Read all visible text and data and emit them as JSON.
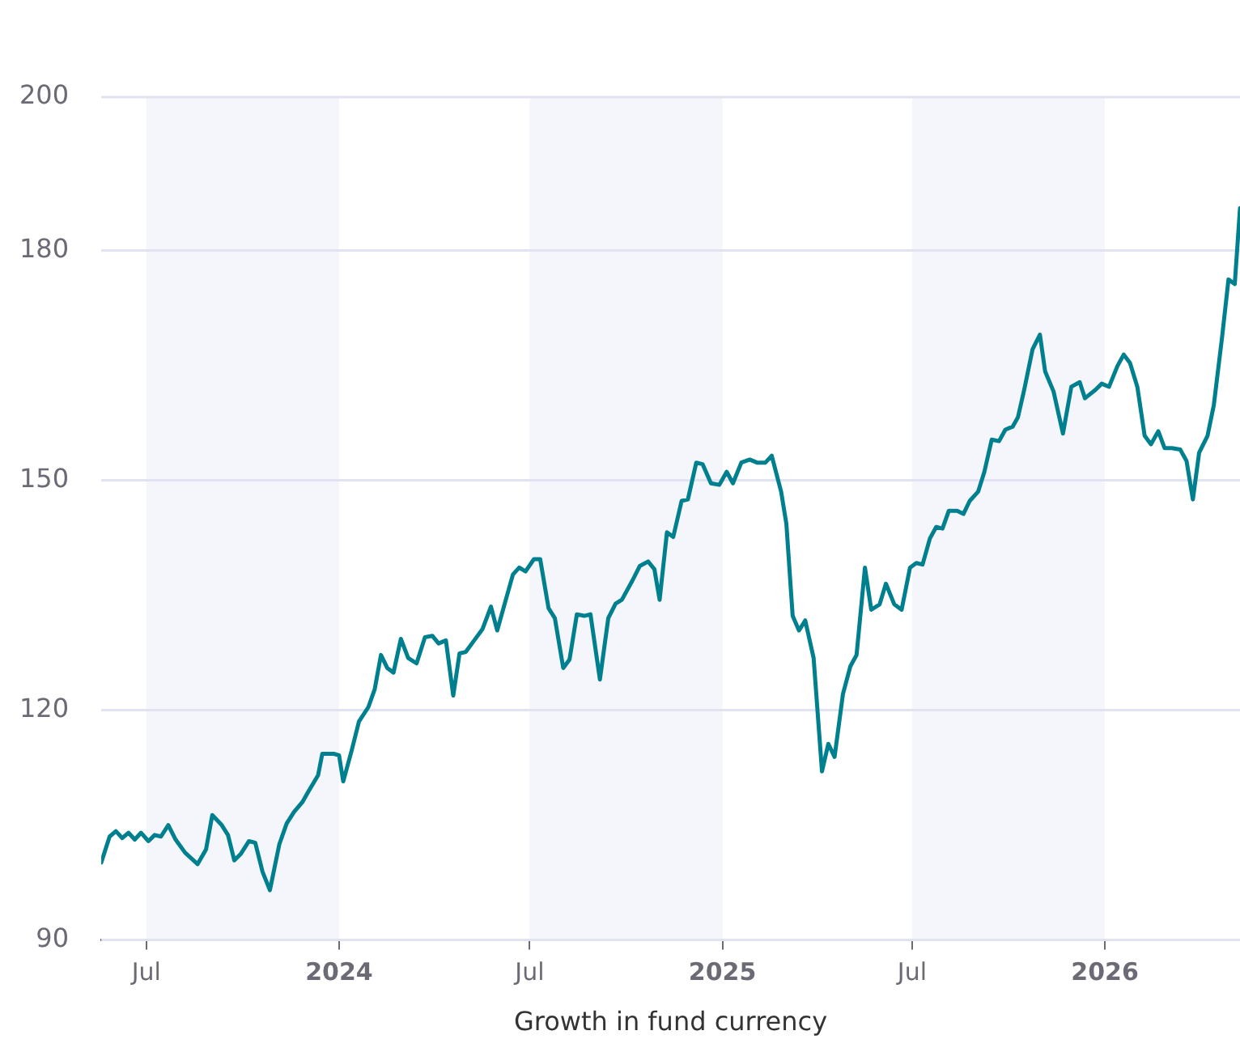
{
  "chart_data": {
    "type": "line",
    "xlabel": "Growth in fund currency",
    "xlim": [
      "2023-05-19",
      "2026-05-10"
    ],
    "xticks": [
      {
        "value": "2023-07-01",
        "label": "Jul"
      },
      {
        "value": "2024-01-01",
        "label": "2024"
      },
      {
        "value": "2024-07-01",
        "label": "Jul"
      },
      {
        "value": "2025-01-01",
        "label": "2025"
      },
      {
        "value": "2025-07-01",
        "label": "Jul"
      },
      {
        "value": "2026-01-01",
        "label": "2026"
      }
    ],
    "ylim": [
      90,
      200
    ],
    "yticks": [
      90,
      120,
      150,
      180,
      200
    ],
    "grid": "y",
    "bands": [
      {
        "axis": "x",
        "from": "2023-07-01",
        "to": "2024-01-01",
        "color": "#f4f6fb"
      },
      {
        "axis": "x",
        "from": "2024-07-01",
        "to": "2025-01-01",
        "color": "#f4f6fb"
      },
      {
        "axis": "x",
        "from": "2025-07-01",
        "to": "2026-01-01",
        "color": "#f4f6fb"
      }
    ],
    "x": [
      "2023-05-19",
      "2023-05-27",
      "2023-06-02",
      "2023-06-08",
      "2023-06-14",
      "2023-06-20",
      "2023-06-26",
      "2023-07-03",
      "2023-07-09",
      "2023-07-15",
      "2023-07-22",
      "2023-07-29",
      "2023-08-07",
      "2023-08-19",
      "2023-08-27",
      "2023-09-02",
      "2023-09-11",
      "2023-09-17",
      "2023-09-23",
      "2023-09-29",
      "2023-10-07",
      "2023-10-13",
      "2023-10-20",
      "2023-10-27",
      "2023-11-05",
      "2023-11-12",
      "2023-11-19",
      "2023-11-27",
      "2023-12-02",
      "2023-12-12",
      "2023-12-16",
      "2023-12-27",
      "2024-01-01",
      "2024-01-05",
      "2024-01-13",
      "2024-01-20",
      "2024-01-29",
      "2024-02-04",
      "2024-02-10",
      "2024-02-16",
      "2024-02-22",
      "2024-02-29",
      "2024-03-07",
      "2024-03-15",
      "2024-03-23",
      "2024-03-30",
      "2024-04-05",
      "2024-04-12",
      "2024-04-19",
      "2024-04-25",
      "2024-05-01",
      "2024-05-09",
      "2024-05-17",
      "2024-05-25",
      "2024-05-31",
      "2024-06-09",
      "2024-06-15",
      "2024-06-21",
      "2024-06-27",
      "2024-07-05",
      "2024-07-11",
      "2024-07-19",
      "2024-07-25",
      "2024-08-02",
      "2024-08-08",
      "2024-08-15",
      "2024-08-22",
      "2024-08-28",
      "2024-09-06",
      "2024-09-14",
      "2024-09-21",
      "2024-09-27",
      "2024-10-07",
      "2024-10-14",
      "2024-10-22",
      "2024-10-28",
      "2024-11-02",
      "2024-11-09",
      "2024-11-15",
      "2024-11-23",
      "2024-11-29",
      "2024-12-07",
      "2024-12-13",
      "2024-12-21",
      "2024-12-29",
      "2025-01-05",
      "2025-01-11",
      "2025-01-19",
      "2025-01-27",
      "2025-02-03",
      "2025-02-11",
      "2025-02-17",
      "2025-02-26",
      "2025-03-03",
      "2025-03-09",
      "2025-03-15",
      "2025-03-21",
      "2025-03-29",
      "2025-04-06",
      "2025-04-12",
      "2025-04-18",
      "2025-04-26",
      "2025-05-03",
      "2025-05-09",
      "2025-05-17",
      "2025-05-23",
      "2025-05-31",
      "2025-06-06",
      "2025-06-14",
      "2025-06-21",
      "2025-06-29",
      "2025-07-05",
      "2025-07-11",
      "2025-07-18",
      "2025-07-24",
      "2025-07-30",
      "2025-08-05",
      "2025-08-13",
      "2025-08-19",
      "2025-08-25",
      "2025-09-02",
      "2025-09-08",
      "2025-09-15",
      "2025-09-22",
      "2025-09-28",
      "2025-10-05",
      "2025-10-10",
      "2025-10-16",
      "2025-10-24",
      "2025-10-31",
      "2025-11-05",
      "2025-11-13",
      "2025-11-22",
      "2025-11-30",
      "2025-12-08",
      "2025-12-13",
      "2025-12-23",
      "2025-12-29",
      "2026-01-05",
      "2026-01-13",
      "2026-01-19",
      "2026-01-25",
      "2026-02-01",
      "2026-02-08",
      "2026-02-14",
      "2026-02-21",
      "2026-02-27",
      "2026-03-06",
      "2026-03-14",
      "2026-03-20",
      "2026-03-26",
      "2026-04-01",
      "2026-04-09",
      "2026-04-15",
      "2026-04-23",
      "2026-04-29",
      "2026-05-05",
      "2026-05-10"
    ],
    "series": [
      {
        "color": "#00808f",
        "values": [
          100.1,
          103.5,
          104.2,
          103.3,
          104,
          103.1,
          104,
          102.9,
          103.7,
          103.5,
          105,
          103.1,
          101.4,
          99.9,
          101.8,
          106.3,
          105,
          103.7,
          100.4,
          101.2,
          102.9,
          102.7,
          98.9,
          96.5,
          102.5,
          105.2,
          106.7,
          108,
          109.2,
          111.5,
          114.3,
          114.3,
          114.1,
          110.7,
          114.7,
          118.5,
          120.4,
          122.7,
          127.2,
          125.5,
          124.9,
          129.3,
          126.8,
          126.1,
          129.5,
          129.7,
          128.7,
          129.1,
          121.9,
          127.4,
          127.6,
          129.1,
          130.6,
          133.5,
          130.4,
          134.8,
          137.7,
          138.6,
          138.1,
          139.7,
          139.7,
          133.3,
          132,
          125.5,
          126.6,
          132.5,
          132.3,
          132.5,
          124,
          132,
          133.9,
          134.4,
          136.9,
          138.8,
          139.4,
          138.4,
          134.4,
          143.2,
          142.6,
          147.3,
          147.5,
          152.3,
          152.1,
          149.6,
          149.4,
          151.1,
          149.6,
          152.3,
          152.7,
          152.3,
          152.3,
          153.2,
          148.5,
          144.3,
          132.3,
          130.4,
          131.7,
          126.8,
          112,
          115.6,
          113.9,
          122.1,
          125.7,
          127.2,
          138.6,
          133.1,
          133.8,
          136.5,
          133.8,
          133.1,
          138.6,
          139.2,
          139,
          142.4,
          143.9,
          143.7,
          146,
          146,
          145.6,
          147.3,
          148.5,
          151.1,
          155.3,
          155.1,
          156.6,
          157,
          158.2,
          161.8,
          167.1,
          169,
          164.2,
          161.6,
          156.1,
          162.2,
          162.8,
          160.7,
          161.8,
          162.6,
          162.2,
          164.9,
          166.4,
          165.3,
          162.2,
          155.8,
          154.7,
          156.4,
          154.2,
          154.2,
          154,
          152.5,
          147.5,
          153.6,
          155.8,
          159.8,
          168.8,
          176.2,
          175.6,
          185.5
        ]
      }
    ]
  }
}
